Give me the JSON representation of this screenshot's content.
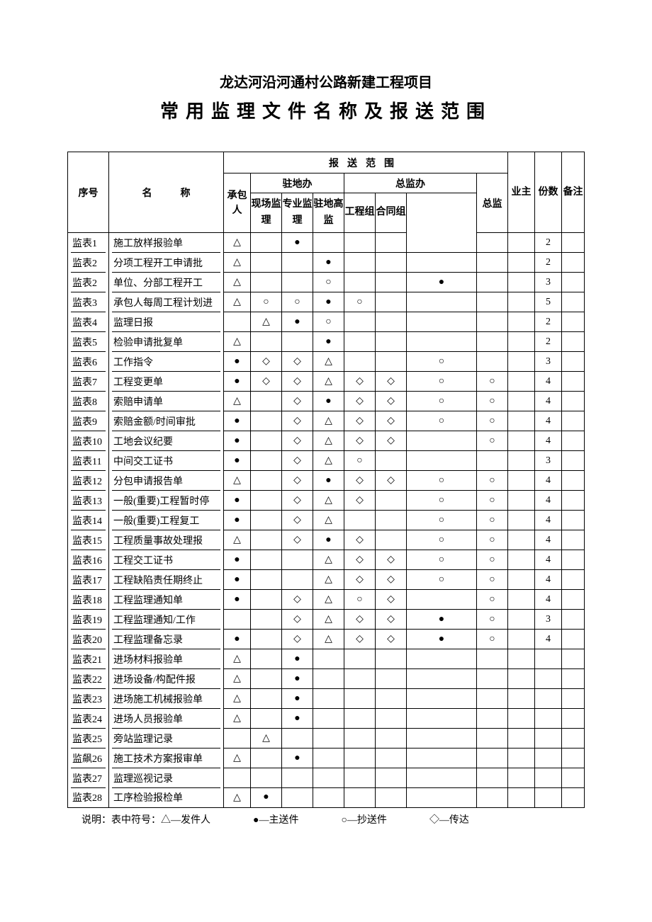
{
  "title1": "龙达河沿河通村公路新建工程项目",
  "title2": "常用监理文件名称及报送范围",
  "headers": {
    "seq": "序号",
    "name": "名称",
    "scope": "报送范围",
    "count": "份数",
    "note": "备注",
    "contractor": "承包人",
    "station": "驻地办",
    "general": "总监办",
    "owner": "业主",
    "onsite": "现场监理",
    "pro": "专业监理",
    "high": "驻地高监",
    "eng": "工程组",
    "contract": "合同组",
    "chief": "总监"
  },
  "symbols": {
    "tri": "△",
    "dot": "●",
    "cir": "○",
    "dia": "◇"
  },
  "rows": [
    {
      "seq": "监表1",
      "name": "施工放样报验单",
      "c": [
        "△",
        "",
        "●",
        "",
        "",
        "",
        "",
        "",
        ""
      ],
      "cnt": "2"
    },
    {
      "seq": "监表2",
      "name": "分项工程开工申请批",
      "c": [
        "△",
        "",
        "",
        "●",
        "",
        "",
        "",
        "",
        ""
      ],
      "cnt": "2"
    },
    {
      "seq": "监表2",
      "name": "单位、分部工程开工",
      "c": [
        "△",
        "",
        "",
        "○",
        "",
        "",
        "●",
        "",
        ""
      ],
      "cnt": "3"
    },
    {
      "seq": "监表3",
      "name": "承包人每周工程计划进",
      "c": [
        "△",
        "○",
        "○",
        "●",
        "○",
        "",
        "",
        "",
        ""
      ],
      "cnt": "5"
    },
    {
      "seq": "监表4",
      "name": "监理日报",
      "c": [
        "",
        "△",
        "●",
        "○",
        "",
        "",
        "",
        "",
        ""
      ],
      "cnt": "2"
    },
    {
      "seq": "监表5",
      "name": "检验申请批复单",
      "c": [
        "△",
        "",
        "",
        "●",
        "",
        "",
        "",
        "",
        ""
      ],
      "cnt": "2"
    },
    {
      "seq": "监表6",
      "name": "工作指令",
      "c": [
        "●",
        "◇",
        "◇",
        "△",
        "",
        "",
        "○",
        "",
        ""
      ],
      "cnt": "3"
    },
    {
      "seq": "监表7",
      "name": "工程变更单",
      "c": [
        "●",
        "◇",
        "◇",
        "△",
        "◇",
        "◇",
        "○",
        "○",
        ""
      ],
      "cnt": "4"
    },
    {
      "seq": "监表8",
      "name": "索赔申请单",
      "c": [
        "△",
        "",
        "◇",
        "●",
        "◇",
        "◇",
        "○",
        "○",
        ""
      ],
      "cnt": "4"
    },
    {
      "seq": "监表9",
      "name": "索赔金额/时间审批",
      "c": [
        "●",
        "",
        "◇",
        "△",
        "◇",
        "◇",
        "○",
        "○",
        ""
      ],
      "cnt": "4"
    },
    {
      "seq": "监表10",
      "name": "工地会议纪要",
      "c": [
        "●",
        "",
        "◇",
        "△",
        "◇",
        "◇",
        "",
        "○",
        ""
      ],
      "cnt": "4"
    },
    {
      "seq": "监表11",
      "name": "中间交工证书",
      "c": [
        "●",
        "",
        "◇",
        "△",
        "○",
        "",
        "",
        "",
        ""
      ],
      "cnt": "3"
    },
    {
      "seq": "监表12",
      "name": "分包申请报告单",
      "c": [
        "△",
        "",
        "◇",
        "●",
        "◇",
        "◇",
        "○",
        "○",
        ""
      ],
      "cnt": "4"
    },
    {
      "seq": "监表13",
      "name": "一般(重要)工程暂时停",
      "c": [
        "●",
        "",
        "◇",
        "△",
        "◇",
        "",
        "○",
        "○",
        ""
      ],
      "cnt": "4"
    },
    {
      "seq": "监表14",
      "name": "一般(重要)工程复工",
      "c": [
        "●",
        "",
        "◇",
        "△",
        "",
        "",
        "○",
        "○",
        ""
      ],
      "cnt": "4"
    },
    {
      "seq": "监表15",
      "name": "工程质量事故处理报",
      "c": [
        "△",
        "",
        "◇",
        "●",
        "◇",
        "",
        "○",
        "○",
        ""
      ],
      "cnt": "4"
    },
    {
      "seq": "监表16",
      "name": "工程交工证书",
      "c": [
        "●",
        "",
        "",
        "△",
        "◇",
        "◇",
        "○",
        "○",
        ""
      ],
      "cnt": "4"
    },
    {
      "seq": "监表17",
      "name": "工程缺陷责任期终止",
      "c": [
        "●",
        "",
        "",
        "△",
        "◇",
        "◇",
        "○",
        "○",
        ""
      ],
      "cnt": "4"
    },
    {
      "seq": "监表18",
      "name": "工程监理通知单",
      "c": [
        "●",
        "",
        "◇",
        "△",
        "○",
        "◇",
        "",
        "○",
        ""
      ],
      "cnt": "4"
    },
    {
      "seq": "监表19",
      "name": "工程监理通知/工作",
      "c": [
        "",
        "",
        "◇",
        "△",
        "◇",
        "◇",
        "●",
        "○",
        ""
      ],
      "cnt": "3"
    },
    {
      "seq": "监表20",
      "name": "工程监理备忘录",
      "c": [
        "●",
        "",
        "◇",
        "△",
        "◇",
        "◇",
        "●",
        "○",
        ""
      ],
      "cnt": "4"
    },
    {
      "seq": "监表21",
      "name": "进场材料报验单",
      "c": [
        "△",
        "",
        "●",
        "",
        "",
        "",
        "",
        "",
        ""
      ],
      "cnt": ""
    },
    {
      "seq": "监表22",
      "name": "进场设备/构配件报",
      "c": [
        "△",
        "",
        "●",
        "",
        "",
        "",
        "",
        "",
        ""
      ],
      "cnt": ""
    },
    {
      "seq": "监表23",
      "name": "进场施工机械报验单",
      "c": [
        "△",
        "",
        "●",
        "",
        "",
        "",
        "",
        "",
        ""
      ],
      "cnt": ""
    },
    {
      "seq": "监表24",
      "name": "进场人员报验单",
      "c": [
        "△",
        "",
        "●",
        "",
        "",
        "",
        "",
        "",
        ""
      ],
      "cnt": ""
    },
    {
      "seq": "监表25",
      "name": "旁站监理记录",
      "c": [
        "",
        "△",
        "",
        "",
        "",
        "",
        "",
        "",
        ""
      ],
      "cnt": ""
    },
    {
      "seq": "监飙26",
      "name": "施工技术方案报审单",
      "c": [
        "△",
        "",
        "●",
        "",
        "",
        "",
        "",
        "",
        ""
      ],
      "cnt": ""
    },
    {
      "seq": "监表27",
      "name": "监理巡视记录",
      "c": [
        "",
        "",
        "",
        "",
        "",
        "",
        "",
        "",
        ""
      ],
      "cnt": ""
    },
    {
      "seq": "监表28",
      "name": "工序检验报检单",
      "c": [
        "△",
        "●",
        "",
        "",
        "",
        "",
        "",
        "",
        ""
      ],
      "cnt": ""
    }
  ],
  "legend": {
    "prefix": "说明：表中符号：",
    "tri": "△—发件人",
    "dot": "●—主送件",
    "cir": "○—抄送件",
    "dia": "◇—传达"
  }
}
